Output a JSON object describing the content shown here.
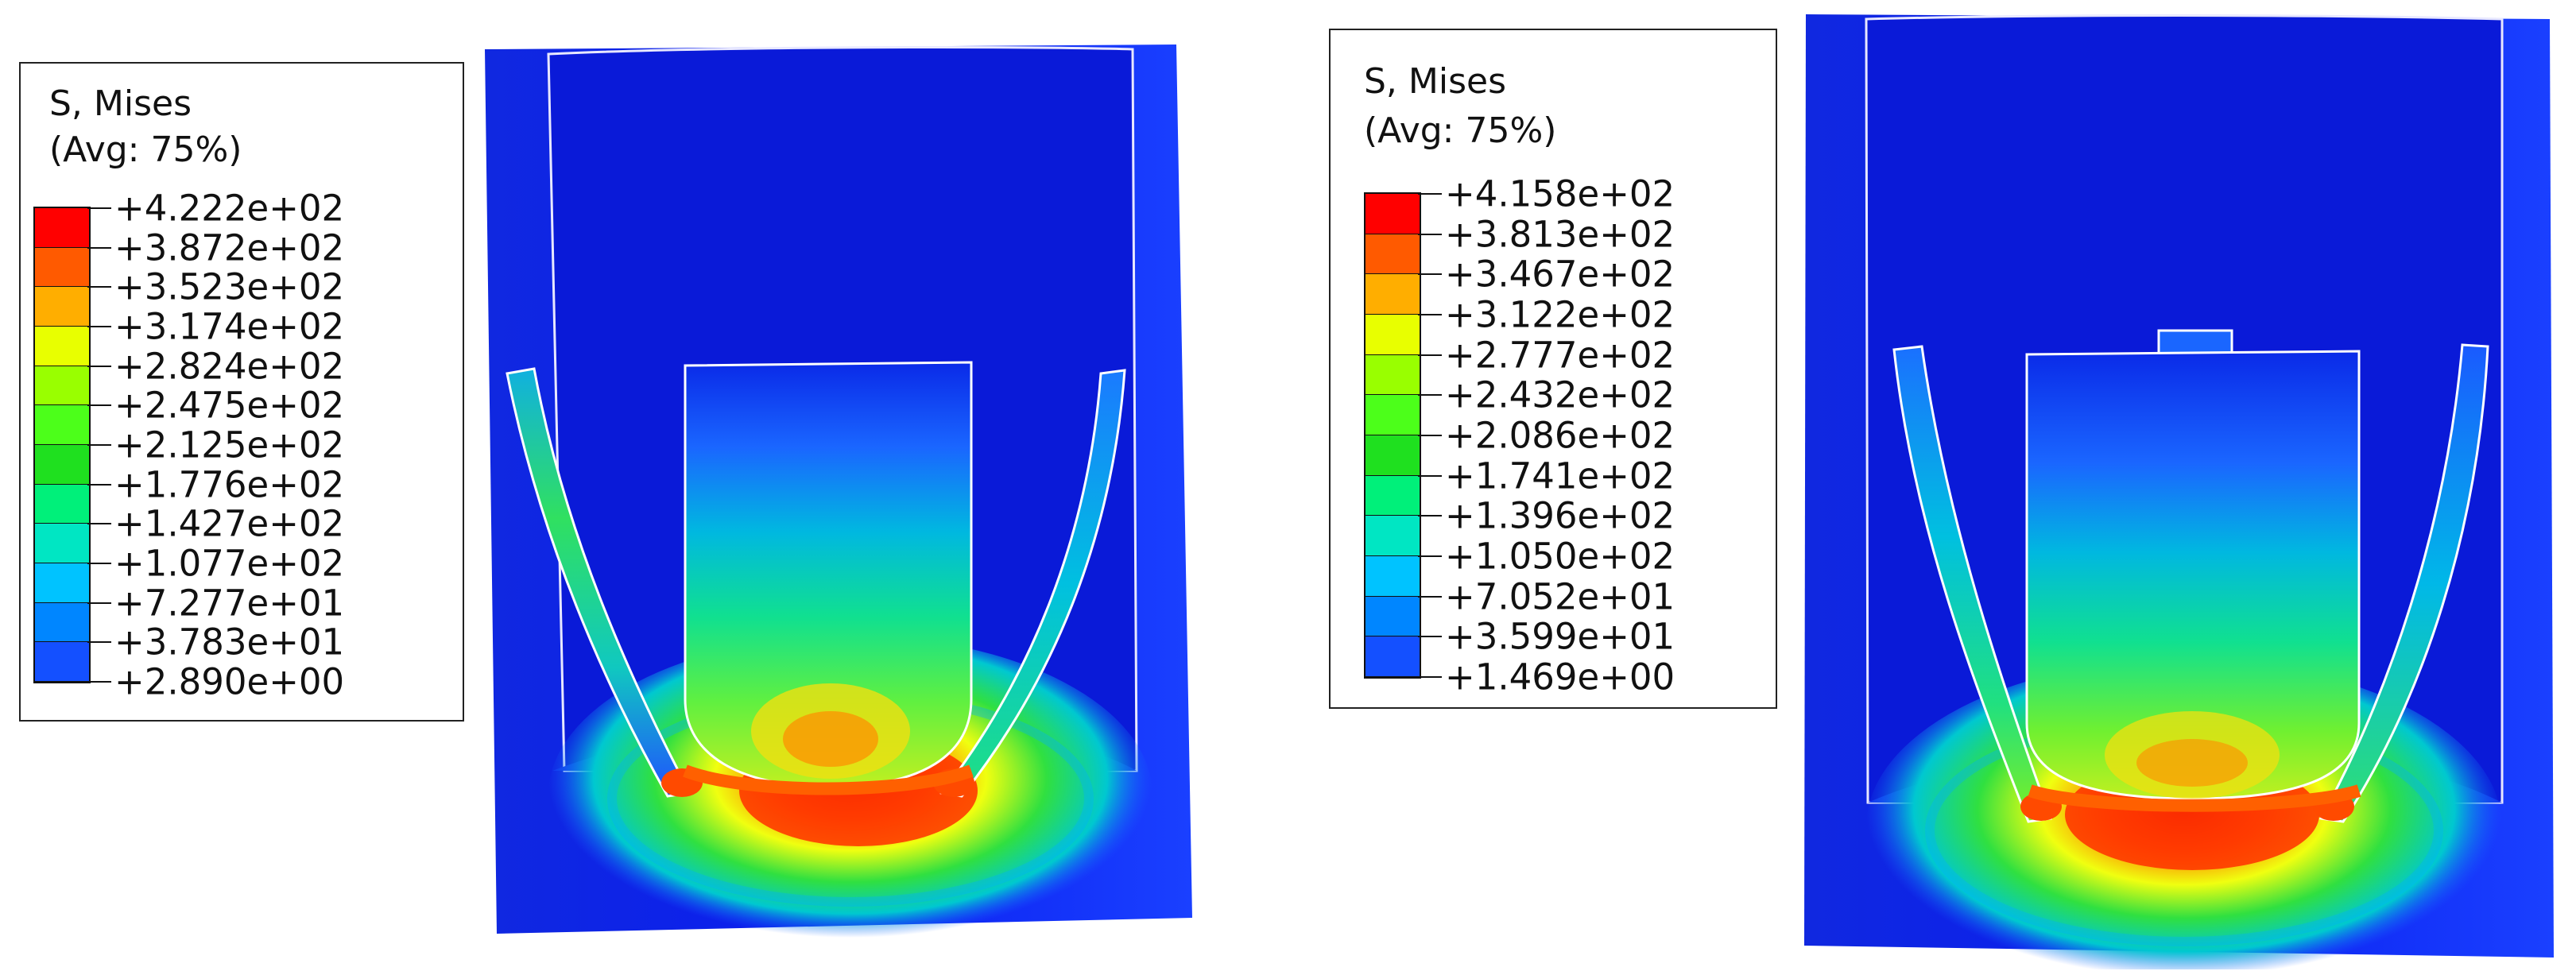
{
  "panels": [
    {
      "legend": {
        "title_line1": "S, Mises",
        "title_line2": "(Avg: 75%)",
        "labels": [
          "+4.222e+02",
          "+3.872e+02",
          "+3.523e+02",
          "+3.174e+02",
          "+2.824e+02",
          "+2.475e+02",
          "+2.125e+02",
          "+1.776e+02",
          "+1.427e+02",
          "+1.077e+02",
          "+7.277e+01",
          "+3.783e+01",
          "+2.890e+00"
        ]
      },
      "has_top_tab": false
    },
    {
      "legend": {
        "title_line1": "S, Mises",
        "title_line2": "(Avg: 75%)",
        "labels": [
          "+4.158e+02",
          "+3.813e+02",
          "+3.467e+02",
          "+3.122e+02",
          "+2.777e+02",
          "+2.432e+02",
          "+2.086e+02",
          "+1.741e+02",
          "+1.396e+02",
          "+1.050e+02",
          "+7.052e+01",
          "+3.599e+01",
          "+1.469e+00"
        ]
      },
      "has_top_tab": true
    }
  ],
  "colormap": [
    "#ff0000",
    "#ff5a00",
    "#ffae00",
    "#e8ff00",
    "#99ff00",
    "#4cff1a",
    "#1fe01f",
    "#00f07a",
    "#00e6c3",
    "#00c3ff",
    "#0086ff",
    "#1450ff",
    "#0000ff"
  ]
}
